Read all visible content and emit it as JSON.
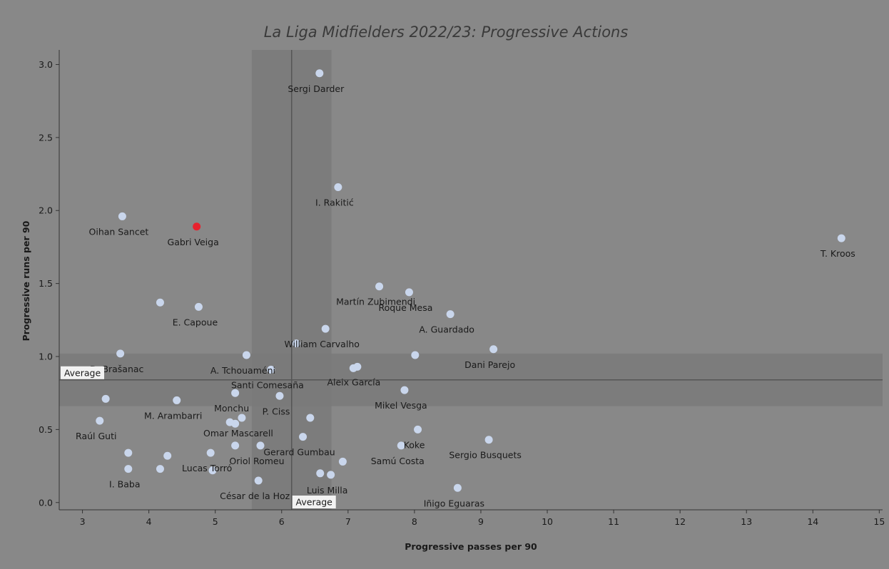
{
  "chart_data": {
    "type": "scatter",
    "title": "La Liga Midfielders 2022/23: Progressive Actions",
    "xlabel": "Progressive passes per 90",
    "ylabel": "Progressive runs per 90",
    "xlim": [
      2.65,
      15.05
    ],
    "ylim": [
      -0.05,
      3.1
    ],
    "xticks": [
      3,
      4,
      5,
      6,
      7,
      8,
      9,
      10,
      11,
      12,
      13,
      14,
      15
    ],
    "yticks": [
      0.0,
      0.5,
      1.0,
      1.5,
      2.0,
      2.5,
      3.0
    ],
    "grid": false,
    "averages": {
      "x": 6.15,
      "y": 0.84,
      "x_band": [
        5.55,
        6.75
      ],
      "y_band": [
        0.66,
        1.02
      ],
      "label": "Average"
    },
    "colors": {
      "background": "#888888",
      "point": "#c9d6ec",
      "highlight": "#e8222e",
      "band": "#7a7a7a",
      "average_line": "#555555"
    },
    "points": [
      {
        "label": "Sergi Darder",
        "x": 6.57,
        "y": 2.94
      },
      {
        "label": "I. Rakitić",
        "x": 6.85,
        "y": 2.16
      },
      {
        "label": "Oihan Sancet",
        "x": 3.6,
        "y": 1.96
      },
      {
        "label": "Gabri Veiga",
        "x": 4.72,
        "y": 1.89,
        "highlight": true
      },
      {
        "label": "T. Kroos",
        "x": 14.43,
        "y": 1.81
      },
      {
        "label": "Martín Zubimendi",
        "x": 7.47,
        "y": 1.48
      },
      {
        "label": "Roque Mesa",
        "x": 7.92,
        "y": 1.44
      },
      {
        "label": "",
        "x": 4.17,
        "y": 1.37
      },
      {
        "label": "E. Capoue",
        "x": 4.75,
        "y": 1.34
      },
      {
        "label": "A. Guardado",
        "x": 8.54,
        "y": 1.29
      },
      {
        "label": "William Carvalho",
        "x": 6.66,
        "y": 1.19
      },
      {
        "label": "",
        "x": 6.22,
        "y": 1.09
      },
      {
        "label": "Dani Parejo",
        "x": 9.19,
        "y": 1.05
      },
      {
        "label": "D. Brašanac",
        "x": 3.57,
        "y": 1.02
      },
      {
        "label": "A. Tchouaméni",
        "x": 5.47,
        "y": 1.01
      },
      {
        "label": "",
        "x": 8.01,
        "y": 1.01
      },
      {
        "label": "Santi Comesaña",
        "x": 5.84,
        "y": 0.91
      },
      {
        "label": "",
        "x": 7.08,
        "y": 0.92
      },
      {
        "label": "Aleix García",
        "x": 7.14,
        "y": 0.93
      },
      {
        "label": "Mikel Vesga",
        "x": 7.85,
        "y": 0.77
      },
      {
        "label": "Monchu",
        "x": 5.3,
        "y": 0.75
      },
      {
        "label": "P. Ciss",
        "x": 5.97,
        "y": 0.73
      },
      {
        "label": "",
        "x": 3.35,
        "y": 0.71
      },
      {
        "label": "M. Arambarri",
        "x": 4.42,
        "y": 0.7
      },
      {
        "label": "",
        "x": 6.43,
        "y": 0.58
      },
      {
        "label": "Omar Mascarell",
        "x": 5.4,
        "y": 0.58
      },
      {
        "label": "",
        "x": 5.22,
        "y": 0.55
      },
      {
        "label": "",
        "x": 5.3,
        "y": 0.54
      },
      {
        "label": "Raúl Guti",
        "x": 3.26,
        "y": 0.56
      },
      {
        "label": "Koke",
        "x": 8.05,
        "y": 0.5
      },
      {
        "label": "Gerard Gumbau",
        "x": 6.32,
        "y": 0.45
      },
      {
        "label": "Sergio Busquets",
        "x": 9.12,
        "y": 0.43
      },
      {
        "label": "Lucas Torró",
        "x": 4.93,
        "y": 0.34
      },
      {
        "label": "Oriol Romeu",
        "x": 5.68,
        "y": 0.39
      },
      {
        "label": "",
        "x": 5.3,
        "y": 0.39
      },
      {
        "label": "Samú Costa",
        "x": 7.8,
        "y": 0.39
      },
      {
        "label": "",
        "x": 3.69,
        "y": 0.34
      },
      {
        "label": "",
        "x": 4.28,
        "y": 0.32
      },
      {
        "label": "",
        "x": 6.92,
        "y": 0.28
      },
      {
        "label": "I. Baba",
        "x": 3.69,
        "y": 0.23
      },
      {
        "label": "",
        "x": 4.17,
        "y": 0.23
      },
      {
        "label": "",
        "x": 4.96,
        "y": 0.22
      },
      {
        "label": "",
        "x": 6.58,
        "y": 0.2
      },
      {
        "label": "Luis Milla",
        "x": 6.74,
        "y": 0.19
      },
      {
        "label": "César de la Hoz",
        "x": 5.65,
        "y": 0.15
      },
      {
        "label": "Iñigo Eguaras",
        "x": 8.65,
        "y": 0.1
      }
    ]
  }
}
